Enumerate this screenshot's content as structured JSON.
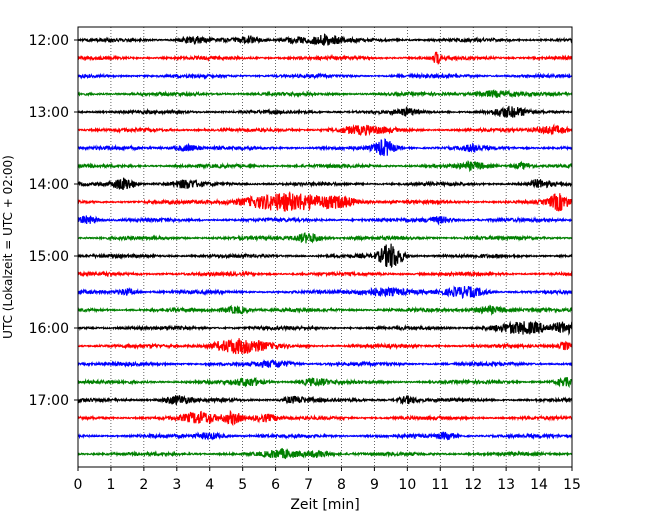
{
  "chart_data": {
    "type": "line",
    "title": "",
    "xlabel": "Zeit  [min]",
    "ylabel": "UTC (Lokalzeit = UTC + 02:00)",
    "xlim": [
      0,
      15
    ],
    "x_ticks": [
      0,
      1,
      2,
      3,
      4,
      5,
      6,
      7,
      8,
      9,
      10,
      11,
      12,
      13,
      14,
      15
    ],
    "x_tick_labels": [
      "0",
      "1",
      "2",
      "3",
      "4",
      "5",
      "6",
      "7",
      "8",
      "9",
      "10",
      "11",
      "12",
      "13",
      "14",
      "15"
    ],
    "y_tick_labels": [
      "12:00",
      "13:00",
      "14:00",
      "15:00",
      "16:00",
      "17:00"
    ],
    "y_tick_rows": [
      0,
      4,
      8,
      12,
      16,
      20
    ],
    "grid": "vertical dotted",
    "row_minutes": 15,
    "trace_colors": [
      "#000000",
      "#ff0000",
      "#0000ff",
      "#008000"
    ],
    "rows": [
      {
        "start": "12:00",
        "bursts": [
          {
            "t": 3.5,
            "a": 0.35,
            "w": 0.4
          },
          {
            "t": 5.2,
            "a": 0.3,
            "w": 0.3
          },
          {
            "t": 6.6,
            "a": 0.3,
            "w": 0.4
          },
          {
            "t": 7.5,
            "a": 0.45,
            "w": 0.5
          }
        ]
      },
      {
        "start": "12:15",
        "bursts": [
          {
            "t": 10.9,
            "a": 0.6,
            "w": 0.1
          }
        ]
      },
      {
        "start": "12:30",
        "bursts": []
      },
      {
        "start": "12:45",
        "bursts": [
          {
            "t": 12.6,
            "a": 0.3,
            "w": 0.6
          }
        ]
      },
      {
        "start": "13:00",
        "bursts": [
          {
            "t": 10.0,
            "a": 0.3,
            "w": 0.3
          },
          {
            "t": 13.1,
            "a": 0.45,
            "w": 0.5
          }
        ]
      },
      {
        "start": "13:15",
        "bursts": [
          {
            "t": 8.6,
            "a": 0.35,
            "w": 0.8
          },
          {
            "t": 14.4,
            "a": 0.4,
            "w": 0.5
          }
        ]
      },
      {
        "start": "13:30",
        "bursts": [
          {
            "t": 3.3,
            "a": 0.3,
            "w": 0.4
          },
          {
            "t": 9.3,
            "a": 0.8,
            "w": 0.3
          },
          {
            "t": 12.0,
            "a": 0.3,
            "w": 0.3
          }
        ]
      },
      {
        "start": "13:45",
        "bursts": [
          {
            "t": 12.0,
            "a": 0.3,
            "w": 0.4
          },
          {
            "t": 13.5,
            "a": 0.3,
            "w": 0.3
          }
        ]
      },
      {
        "start": "14:00",
        "bursts": [
          {
            "t": 1.4,
            "a": 0.6,
            "w": 0.35
          },
          {
            "t": 3.3,
            "a": 0.35,
            "w": 0.4
          },
          {
            "t": 14.0,
            "a": 0.35,
            "w": 0.3
          }
        ]
      },
      {
        "start": "14:15",
        "bursts": [
          {
            "t": 6.3,
            "a": 0.8,
            "w": 1.4
          },
          {
            "t": 8.0,
            "a": 0.4,
            "w": 0.5
          },
          {
            "t": 14.6,
            "a": 0.8,
            "w": 0.3
          }
        ]
      },
      {
        "start": "14:30",
        "bursts": [
          {
            "t": 0.3,
            "a": 0.4,
            "w": 0.3
          },
          {
            "t": 11.0,
            "a": 0.3,
            "w": 0.4
          }
        ]
      },
      {
        "start": "14:45",
        "bursts": [
          {
            "t": 7.0,
            "a": 0.5,
            "w": 0.4
          }
        ]
      },
      {
        "start": "15:00",
        "bursts": [
          {
            "t": 9.5,
            "a": 1.2,
            "w": 0.35
          }
        ]
      },
      {
        "start": "15:15",
        "bursts": []
      },
      {
        "start": "15:30",
        "bursts": [
          {
            "t": 1.5,
            "a": 0.3,
            "w": 0.3
          },
          {
            "t": 9.3,
            "a": 0.4,
            "w": 0.8
          },
          {
            "t": 11.8,
            "a": 0.45,
            "w": 0.6
          }
        ]
      },
      {
        "start": "15:45",
        "bursts": [
          {
            "t": 4.8,
            "a": 0.35,
            "w": 0.4
          },
          {
            "t": 12.5,
            "a": 0.35,
            "w": 0.5
          }
        ]
      },
      {
        "start": "16:00",
        "bursts": [
          {
            "t": 13.5,
            "a": 0.5,
            "w": 0.9
          },
          {
            "t": 14.8,
            "a": 0.5,
            "w": 0.3
          }
        ]
      },
      {
        "start": "16:15",
        "bursts": [
          {
            "t": 4.9,
            "a": 0.7,
            "w": 0.8
          },
          {
            "t": 14.8,
            "a": 0.4,
            "w": 0.2
          }
        ]
      },
      {
        "start": "16:30",
        "bursts": [
          {
            "t": 6.0,
            "a": 0.3,
            "w": 0.5
          }
        ]
      },
      {
        "start": "16:45",
        "bursts": [
          {
            "t": 5.2,
            "a": 0.35,
            "w": 0.4
          },
          {
            "t": 7.2,
            "a": 0.35,
            "w": 0.4
          },
          {
            "t": 14.8,
            "a": 0.35,
            "w": 0.3
          }
        ]
      },
      {
        "start": "17:00",
        "bursts": [
          {
            "t": 3.0,
            "a": 0.4,
            "w": 0.4
          },
          {
            "t": 6.6,
            "a": 0.3,
            "w": 0.4
          },
          {
            "t": 10.0,
            "a": 0.35,
            "w": 0.3
          }
        ]
      },
      {
        "start": "17:15",
        "bursts": [
          {
            "t": 3.7,
            "a": 0.5,
            "w": 0.5
          },
          {
            "t": 4.7,
            "a": 0.6,
            "w": 0.3
          },
          {
            "t": 5.7,
            "a": 0.35,
            "w": 0.4
          }
        ]
      },
      {
        "start": "17:30",
        "bursts": [
          {
            "t": 4.0,
            "a": 0.3,
            "w": 0.4
          },
          {
            "t": 11.2,
            "a": 0.3,
            "w": 0.3
          }
        ]
      },
      {
        "start": "17:45",
        "bursts": [
          {
            "t": 6.2,
            "a": 0.35,
            "w": 0.5
          },
          {
            "t": 7.3,
            "a": 0.3,
            "w": 0.4
          }
        ]
      }
    ]
  }
}
